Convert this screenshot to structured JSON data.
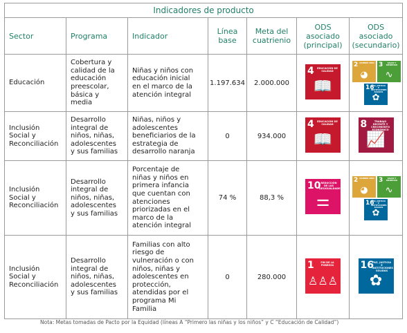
{
  "title": "Indicadores de producto",
  "headers": {
    "sector": "Sector",
    "programa": "Programa",
    "indicador": "Indicador",
    "linea_base_1": "Línea",
    "linea_base_2": "base",
    "meta_1": "Meta del",
    "meta_2": "cuatrienio",
    "ods_p_1": "ODS",
    "ods_p_2": "asociado",
    "ods_p_3": "(principal)",
    "ods_s_1": "ODS",
    "ods_s_2": "asociado",
    "ods_s_3": "(secundario)"
  },
  "rows": [
    {
      "sector": [
        "Educación"
      ],
      "programa": [
        "Cobertura y",
        "calidad de la",
        "educación",
        "preescolar,",
        "básica y",
        "media"
      ],
      "indicador": [
        "Niñas y niños con",
        "educación inicial",
        "en el marco de la",
        "atención integral"
      ],
      "linea_base": "1.197.634",
      "meta": "2.000.000"
    },
    {
      "sector": [
        "Inclusión",
        "Social y",
        "Reconciliación"
      ],
      "programa": [
        "Desarrollo",
        "integral de",
        "niños, niñas,",
        "adolescentes",
        "y sus familias"
      ],
      "indicador": [
        "Niñas, niños y",
        "adolescentes",
        "beneficiarios de la",
        "estrategia de",
        "desarrollo naranja"
      ],
      "linea_base": "0",
      "meta": "934.000"
    },
    {
      "sector": [
        "Inclusión",
        "Social y",
        "Reconciliación"
      ],
      "programa": [
        "Desarrollo",
        "integral de",
        "niños, niñas,",
        "adolescentes",
        "y sus familias"
      ],
      "indicador": [
        "Porcentaje de",
        "niñas y niños en",
        "primera infancia",
        "que cuentan con",
        "atenciones",
        "priorizadas en el",
        "marco de la",
        "atención integral"
      ],
      "linea_base": "74 %",
      "meta": "88,3 %"
    },
    {
      "sector": [
        "Inclusión",
        "Social y",
        "Reconciliación"
      ],
      "programa": [
        "Desarrollo",
        "integral de",
        "niños, niñas,",
        "adolescentes",
        "y sus familias"
      ],
      "indicador": [
        "Familias con alto",
        "riesgo de",
        "vulneración o con",
        "niños, niñas y",
        "adolescentes en",
        "protección,",
        "atendidas por el",
        "programa Mi",
        "Familia"
      ],
      "linea_base": "0",
      "meta": "280.000"
    }
  ],
  "sdg_icons": {
    "ods4": {
      "number": "4",
      "label": "EDUCACIÓN DE CALIDAD",
      "color": "#c5192d",
      "icon": "book-icon"
    },
    "ods8": {
      "number": "8",
      "label": "TRABAJO DECENTE Y CRECIMIENTO ECONÓMICO",
      "color": "#a21942",
      "icon": "growth-chart-icon"
    },
    "ods10": {
      "number": "10",
      "label": "REDUCCIÓN DE LAS DESIGUALDADES",
      "color": "#dd1367",
      "icon": "equality-icon"
    },
    "ods1": {
      "number": "1",
      "label": "FIN DE LA POBREZA",
      "color": "#e5243b",
      "icon": "family-icon"
    },
    "ods16": {
      "number": "16",
      "label": "PAZ, JUSTICIA E INSTITUCIONES SÓLIDAS",
      "color": "#00689d",
      "icon": "dove-icon"
    },
    "ods2": {
      "number": "2",
      "label": "HAMBRE CERO",
      "color": "#dda63a",
      "icon": "bowl-icon"
    },
    "ods3": {
      "number": "3",
      "label": "SALUD Y BIENESTAR",
      "color": "#4c9f38",
      "icon": "heartbeat-icon"
    }
  },
  "note": "Nota: Metas tomadas de Pacto por la Equidad (líneas A “Primero las niñas y los niños” y C “Educación de Calidad”)"
}
